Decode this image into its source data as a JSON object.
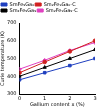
{
  "chart_data": {
    "type": "line",
    "x_label": "Gallium content x (%)",
    "y_label": "Curie temperature (K)",
    "x": [
      0,
      1,
      2,
      3
    ],
    "xlim": [
      0,
      3
    ],
    "xticks": [
      0,
      1,
      2,
      3
    ],
    "ylim": [
      300,
      700
    ],
    "yticks": [
      300,
      400,
      500,
      600,
      700
    ],
    "grid": false,
    "legend": "upper left",
    "series": [
      {
        "name": "SmFe₉Ga₀",
        "color": "#1f3fbf",
        "marker": "square",
        "values": [
          380,
          420,
          460,
          500
        ]
      },
      {
        "name": "Sm₂Fe₉Ga₀-C",
        "color": "#d02020",
        "marker": "circle",
        "values": [
          420,
          480,
          540,
          600
        ]
      },
      {
        "name": "Sm₂Fe₉Ga₉",
        "color": "#000000",
        "marker": "triangle",
        "values": [
          400,
          450,
          500,
          550
        ]
      },
      {
        "name": "Sm₂Fe₉Ga₉-C",
        "color": "#e040c0",
        "marker": "rectRot",
        "values": [
          440,
          490,
          545,
          590
        ]
      }
    ]
  }
}
